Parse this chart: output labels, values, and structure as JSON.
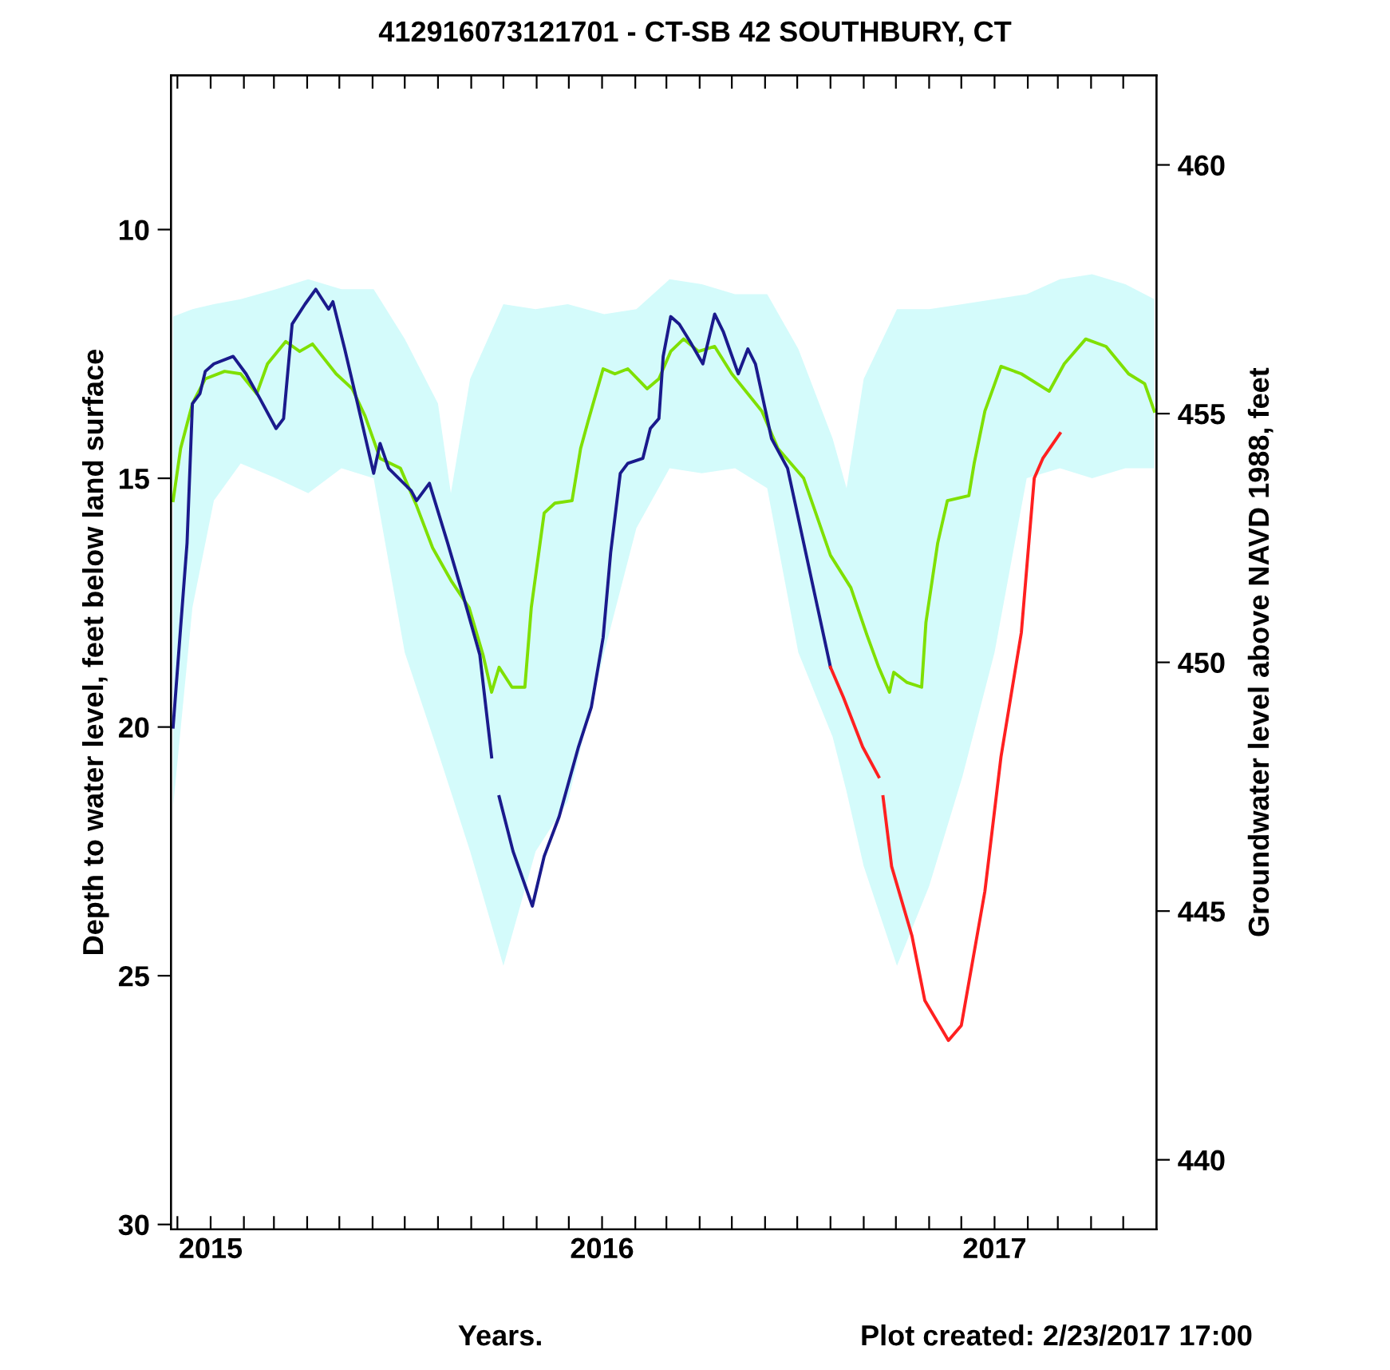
{
  "chart_data": {
    "type": "line",
    "title": "412916073121701 - CT-SB 42 SOUTHBURY, CT",
    "xlabel": "Years.",
    "ylabel": "Depth to water level, feet below land surface",
    "y2label": "Groundwater level above NAVD 1988, feet",
    "annotations": [
      "Plot created: 2/23/2017 17:00"
    ],
    "xlim": [
      "2014-11-25",
      "2017-06-01"
    ],
    "xticks": [
      {
        "value": "2014-12-01",
        "label": null
      },
      {
        "value": "2015-01-01",
        "label": "2015"
      },
      {
        "value": "2015-02-01",
        "label": null
      },
      {
        "value": "2015-03-01",
        "label": null
      },
      {
        "value": "2015-04-01",
        "label": null
      },
      {
        "value": "2015-05-01",
        "label": null
      },
      {
        "value": "2015-06-01",
        "label": null
      },
      {
        "value": "2015-07-01",
        "label": null
      },
      {
        "value": "2015-08-01",
        "label": null
      },
      {
        "value": "2015-09-01",
        "label": null
      },
      {
        "value": "2015-10-01",
        "label": null
      },
      {
        "value": "2015-11-01",
        "label": null
      },
      {
        "value": "2015-12-01",
        "label": null
      },
      {
        "value": "2016-01-01",
        "label": "2016"
      },
      {
        "value": "2016-02-01",
        "label": null
      },
      {
        "value": "2016-03-01",
        "label": null
      },
      {
        "value": "2016-04-01",
        "label": null
      },
      {
        "value": "2016-05-01",
        "label": null
      },
      {
        "value": "2016-06-01",
        "label": null
      },
      {
        "value": "2016-07-01",
        "label": null
      },
      {
        "value": "2016-08-01",
        "label": null
      },
      {
        "value": "2016-09-01",
        "label": null
      },
      {
        "value": "2016-10-01",
        "label": null
      },
      {
        "value": "2016-11-01",
        "label": null
      },
      {
        "value": "2016-12-01",
        "label": null
      },
      {
        "value": "2017-01-01",
        "label": "2017"
      },
      {
        "value": "2017-02-01",
        "label": null
      },
      {
        "value": "2017-03-01",
        "label": null
      },
      {
        "value": "2017-04-01",
        "label": null
      },
      {
        "value": "2017-05-01",
        "label": null
      }
    ],
    "ylim": [
      30.1,
      6.9
    ],
    "yticks": [
      10,
      15,
      20,
      25,
      30
    ],
    "y2lim": [
      438.6,
      461.8
    ],
    "y2ticks": [
      440,
      445,
      450,
      455,
      460
    ],
    "grid": false,
    "legend": false,
    "series": [
      {
        "color": "#d4fbfb",
        "x": [
          "2014-11-27",
          "2014-12-15",
          "2015-01-04",
          "2015-01-29",
          "2015-03-03",
          "2015-04-02",
          "2015-05-03",
          "2015-06-02",
          "2015-07-01",
          "2015-08-01",
          "2015-08-13",
          "2015-08-31",
          "2015-10-01",
          "2015-10-31",
          "2015-11-30",
          "2016-01-03",
          "2016-02-02",
          "2016-03-04",
          "2016-04-03",
          "2016-05-04",
          "2016-06-03",
          "2016-07-02",
          "2016-08-03",
          "2016-08-16",
          "2016-09-01",
          "2016-10-02",
          "2016-11-01",
          "2016-12-02",
          "2017-01-01",
          "2017-01-31",
          "2017-03-03",
          "2017-04-02",
          "2017-05-03",
          "2017-05-30"
        ],
        "values": [
          null,
          null,
          null,
          null,
          null,
          null,
          null,
          null,
          null,
          null,
          null,
          null,
          null,
          null,
          null,
          null,
          null,
          null,
          null,
          null,
          null,
          null,
          null,
          null,
          null,
          null,
          null,
          null,
          null,
          null,
          null,
          null,
          null,
          null
        ],
        "upper": [
          11.75,
          11.6,
          11.5,
          11.4,
          11.2,
          11.0,
          11.2,
          11.2,
          12.2,
          13.5,
          15.3,
          13.0,
          11.5,
          11.6,
          11.5,
          11.7,
          11.6,
          11.0,
          11.1,
          11.3,
          11.3,
          12.4,
          14.2,
          15.2,
          13.0,
          11.6,
          11.6,
          11.5,
          11.4,
          11.3,
          11.0,
          10.9,
          11.1,
          11.4
        ],
        "lower": [
          21.6,
          17.6,
          15.45,
          14.7,
          15.0,
          15.3,
          14.8,
          15.0,
          18.5,
          20.5,
          21.3,
          22.5,
          24.8,
          22.5,
          21.5,
          18.5,
          16.0,
          14.8,
          14.9,
          14.8,
          15.2,
          18.5,
          20.2,
          21.3,
          22.8,
          24.8,
          23.2,
          21.0,
          18.5,
          15.0,
          14.8,
          15.0,
          14.8,
          14.8
        ]
      },
      {
        "color": "#7fe000",
        "x": [
          "2014-11-27",
          "2014-12-04",
          "2014-12-15",
          "2014-12-27",
          "2015-01-14",
          "2015-01-29",
          "2015-02-13",
          "2015-02-23",
          "2015-03-12",
          "2015-03-25",
          "2015-04-06",
          "2015-04-28",
          "2015-05-13",
          "2015-05-25",
          "2015-06-08",
          "2015-06-27",
          "2015-07-12",
          "2015-07-27",
          "2015-08-13",
          "2015-08-30",
          "2015-09-12",
          "2015-09-20",
          "2015-09-27",
          "2015-10-09",
          "2015-10-21",
          "2015-10-27",
          "2015-11-08",
          "2015-11-18",
          "2015-12-04",
          "2015-12-12",
          "2015-12-19",
          "2016-01-02",
          "2016-01-13",
          "2016-01-25",
          "2016-02-12",
          "2016-02-23",
          "2016-03-05",
          "2016-03-17",
          "2016-03-31",
          "2016-04-15",
          "2016-05-01",
          "2016-05-29",
          "2016-06-13",
          "2016-07-07",
          "2016-08-01",
          "2016-08-20",
          "2016-09-04",
          "2016-09-15",
          "2016-09-25",
          "2016-09-29",
          "2016-10-11",
          "2016-10-25",
          "2016-10-29",
          "2016-11-09",
          "2016-11-18",
          "2016-12-08",
          "2016-12-13",
          "2016-12-23",
          "2017-01-07",
          "2017-01-26",
          "2017-02-21",
          "2017-03-07",
          "2017-03-27",
          "2017-04-15",
          "2017-05-06",
          "2017-05-21",
          "2017-05-30"
        ],
        "values": [
          15.45,
          14.4,
          13.5,
          13.0,
          12.85,
          12.9,
          13.3,
          12.7,
          12.25,
          12.45,
          12.3,
          12.9,
          13.2,
          13.75,
          14.6,
          14.8,
          15.55,
          16.4,
          17.05,
          17.6,
          18.55,
          19.3,
          18.8,
          19.2,
          19.2,
          17.6,
          15.7,
          15.5,
          15.45,
          14.4,
          13.85,
          12.8,
          12.9,
          12.8,
          13.2,
          13.0,
          12.45,
          12.2,
          12.45,
          12.35,
          12.9,
          13.65,
          14.4,
          15.0,
          16.55,
          17.2,
          18.15,
          18.8,
          19.3,
          18.9,
          19.1,
          19.2,
          17.9,
          16.3,
          15.45,
          15.35,
          14.7,
          13.65,
          12.75,
          12.9,
          13.25,
          12.7,
          12.2,
          12.35,
          12.9,
          13.1,
          13.65
        ]
      },
      {
        "color": "#1a1a8c",
        "x": [
          "2014-11-27",
          "2014-12-04",
          "2014-12-10",
          "2014-12-15",
          "2014-12-22",
          "2014-12-27",
          "2015-01-04",
          "2015-01-22",
          "2015-02-03",
          "2015-02-16",
          "2015-03-03",
          "2015-03-10",
          "2015-03-18",
          "2015-03-30",
          "2015-04-09",
          "2015-04-21",
          "2015-04-25",
          "2015-05-06",
          "2015-05-18",
          "2015-06-02",
          "2015-06-08",
          "2015-06-16",
          "2015-07-07",
          "2015-07-12",
          "2015-07-24",
          "2015-08-10",
          "2015-08-25",
          "2015-09-09",
          "2015-09-20",
          "2015-09-24",
          "2015-09-27",
          "2015-10-10",
          "2015-10-28",
          "2015-11-08",
          "2015-11-22",
          "2015-12-10",
          "2015-12-22",
          "2016-01-02",
          "2016-01-09",
          "2016-01-18",
          "2016-01-25",
          "2016-02-08",
          "2016-02-15",
          "2016-02-23",
          "2016-02-27",
          "2016-03-05",
          "2016-03-13",
          "2016-03-23",
          "2016-04-04",
          "2016-04-15",
          "2016-04-23",
          "2016-05-07",
          "2016-05-16",
          "2016-05-23",
          "2016-06-07",
          "2016-06-22",
          "2016-07-05",
          "2016-07-20",
          "2016-08-01"
        ],
        "values": [
          20.0,
          18.0,
          16.3,
          13.5,
          13.3,
          12.85,
          12.7,
          12.55,
          12.9,
          13.4,
          14.0,
          13.8,
          11.9,
          11.5,
          11.2,
          11.6,
          11.45,
          12.4,
          13.5,
          14.9,
          14.3,
          14.8,
          15.25,
          15.45,
          15.1,
          16.3,
          17.4,
          18.55,
          20.6,
          null,
          21.4,
          22.5,
          23.6,
          22.6,
          21.8,
          20.4,
          19.6,
          18.2,
          16.5,
          14.9,
          14.7,
          14.6,
          14.0,
          13.8,
          12.55,
          11.75,
          11.9,
          12.25,
          12.7,
          11.7,
          12.05,
          12.9,
          12.4,
          12.7,
          14.2,
          14.8,
          16.1,
          17.6,
          18.8
        ]
      },
      {
        "color": "#ff2020",
        "x": [
          "2016-08-01",
          "2016-08-13",
          "2016-08-31",
          "2016-09-15",
          "2016-09-17",
          "2016-09-19",
          "2016-09-27",
          "2016-10-16",
          "2016-10-28",
          "2016-11-19",
          "2016-12-01",
          "2016-12-23",
          "2017-01-07",
          "2017-01-26",
          "2017-02-07",
          "2017-02-15",
          "2017-03-03"
        ],
        "values": [
          18.8,
          19.4,
          20.4,
          21.0,
          null,
          21.4,
          22.8,
          24.2,
          25.5,
          26.3,
          26.0,
          23.3,
          20.6,
          18.1,
          15.0,
          14.6,
          14.1
        ]
      }
    ]
  }
}
